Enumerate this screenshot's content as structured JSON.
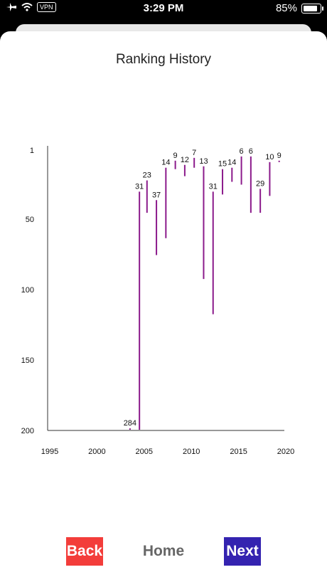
{
  "status_bar": {
    "time": "3:29 PM",
    "vpn": "VPN",
    "battery_percent": "85%",
    "battery_level": 0.85
  },
  "page": {
    "title": "Ranking History"
  },
  "chart_data": {
    "type": "bar",
    "orientation": "vertical-ranges",
    "x_ticks": [
      "1995",
      "2000",
      "2005",
      "2010",
      "2015",
      "2020"
    ],
    "y_ticks": [
      "1",
      "50",
      "100",
      "150",
      "200"
    ],
    "y_inverted": true,
    "xlim": [
      1995,
      2020
    ],
    "ylim": [
      200,
      1
    ],
    "color": "#8b1a8b",
    "series": [
      {
        "year": 2003.5,
        "best": 199,
        "worst": 200,
        "label": "284"
      },
      {
        "year": 2004.5,
        "best": 31,
        "worst": 200,
        "label": "31"
      },
      {
        "year": 2005.3,
        "best": 23,
        "worst": 46,
        "label": "23"
      },
      {
        "year": 2006.3,
        "best": 37,
        "worst": 76,
        "label": "37"
      },
      {
        "year": 2007.3,
        "best": 14,
        "worst": 64,
        "label": "14"
      },
      {
        "year": 2008.3,
        "best": 9,
        "worst": 15,
        "label": "9"
      },
      {
        "year": 2009.3,
        "best": 12,
        "worst": 20,
        "label": "12"
      },
      {
        "year": 2010.3,
        "best": 7,
        "worst": 14,
        "label": "7"
      },
      {
        "year": 2011.3,
        "best": 13,
        "worst": 93,
        "label": "13"
      },
      {
        "year": 2012.3,
        "best": 31,
        "worst": 118,
        "label": "31"
      },
      {
        "year": 2013.3,
        "best": 15,
        "worst": 33,
        "label": "15"
      },
      {
        "year": 2014.3,
        "best": 14,
        "worst": 24,
        "label": "14"
      },
      {
        "year": 2015.3,
        "best": 6,
        "worst": 26,
        "label": "6"
      },
      {
        "year": 2016.3,
        "best": 6,
        "worst": 46,
        "label": "6"
      },
      {
        "year": 2017.3,
        "best": 29,
        "worst": 46,
        "label": "29"
      },
      {
        "year": 2018.3,
        "best": 10,
        "worst": 34,
        "label": "10"
      },
      {
        "year": 2019.3,
        "best": 9,
        "worst": 10,
        "label": "9"
      }
    ]
  },
  "nav": {
    "back_label": "Back",
    "home_label": "Home",
    "next_label": "Next"
  },
  "colors": {
    "back": "#f33d3a",
    "next": "#3423b0",
    "home_text": "#666666",
    "bar": "#8b1a8b"
  }
}
